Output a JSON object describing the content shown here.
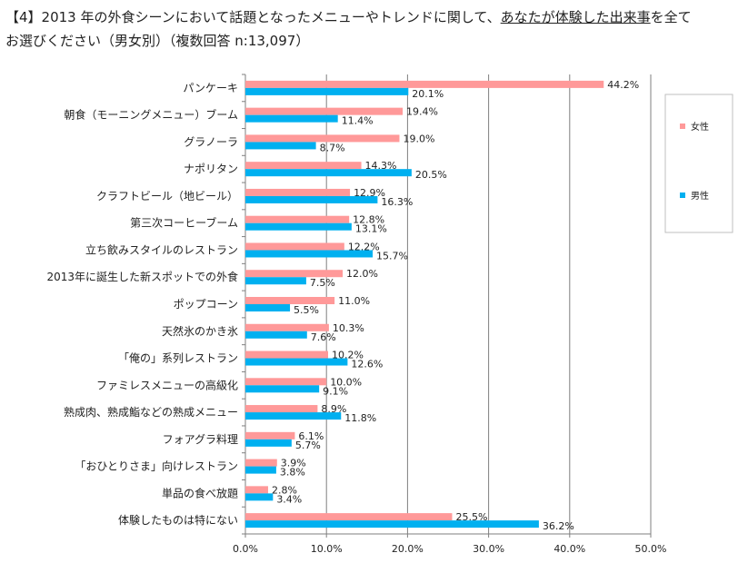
{
  "title": {
    "prefix": "【4】2013 年の外食シーンにおいて話題となったメニューやトレンドに関して、",
    "underlined": "あなたが体験した出来事",
    "suffix": "を全て",
    "line2": "お選びください（男女別）（複数回答 n:13,097）"
  },
  "colors": {
    "female": "#FF9999",
    "male": "#00B0F0",
    "grid": "#7f7f7f",
    "axis": "#7f7f7f"
  },
  "chart_data": {
    "type": "bar",
    "orientation": "horizontal",
    "categories": [
      "パンケーキ",
      "朝食（モーニングメニュー）ブーム",
      "グラノーラ",
      "ナポリタン",
      "クラフトビール（地ビール）",
      "第三次コーヒーブーム",
      "立ち飲みスタイルのレストラン",
      "2013年に誕生した新スポットでの外食",
      "ポップコーン",
      "天然氷のかき氷",
      "「俺の」系列レストラン",
      "ファミレスメニューの高級化",
      "熟成肉、熟成鮨などの熟成メニュー",
      "フォアグラ料理",
      "「おひとりさま」向けレストラン",
      "単品の食べ放題",
      "体験したものは特にない"
    ],
    "series": [
      {
        "name": "女性",
        "color": "#FF9999",
        "values": [
          44.2,
          19.4,
          19.0,
          14.3,
          12.9,
          12.8,
          12.2,
          12.0,
          11.0,
          10.3,
          10.2,
          10.0,
          8.9,
          6.1,
          3.9,
          2.8,
          25.5
        ]
      },
      {
        "name": "男性",
        "color": "#00B0F0",
        "values": [
          20.1,
          11.4,
          8.7,
          20.5,
          16.3,
          13.1,
          15.7,
          7.5,
          5.5,
          7.6,
          12.6,
          9.1,
          11.8,
          5.7,
          3.8,
          3.4,
          36.2
        ]
      }
    ],
    "xlim": [
      0,
      50
    ],
    "xticks": [
      "0.0%",
      "10.0%",
      "20.0%",
      "30.0%",
      "40.0%",
      "50.0%"
    ],
    "value_suffix": "%",
    "grid": true,
    "legend_position": "right"
  }
}
